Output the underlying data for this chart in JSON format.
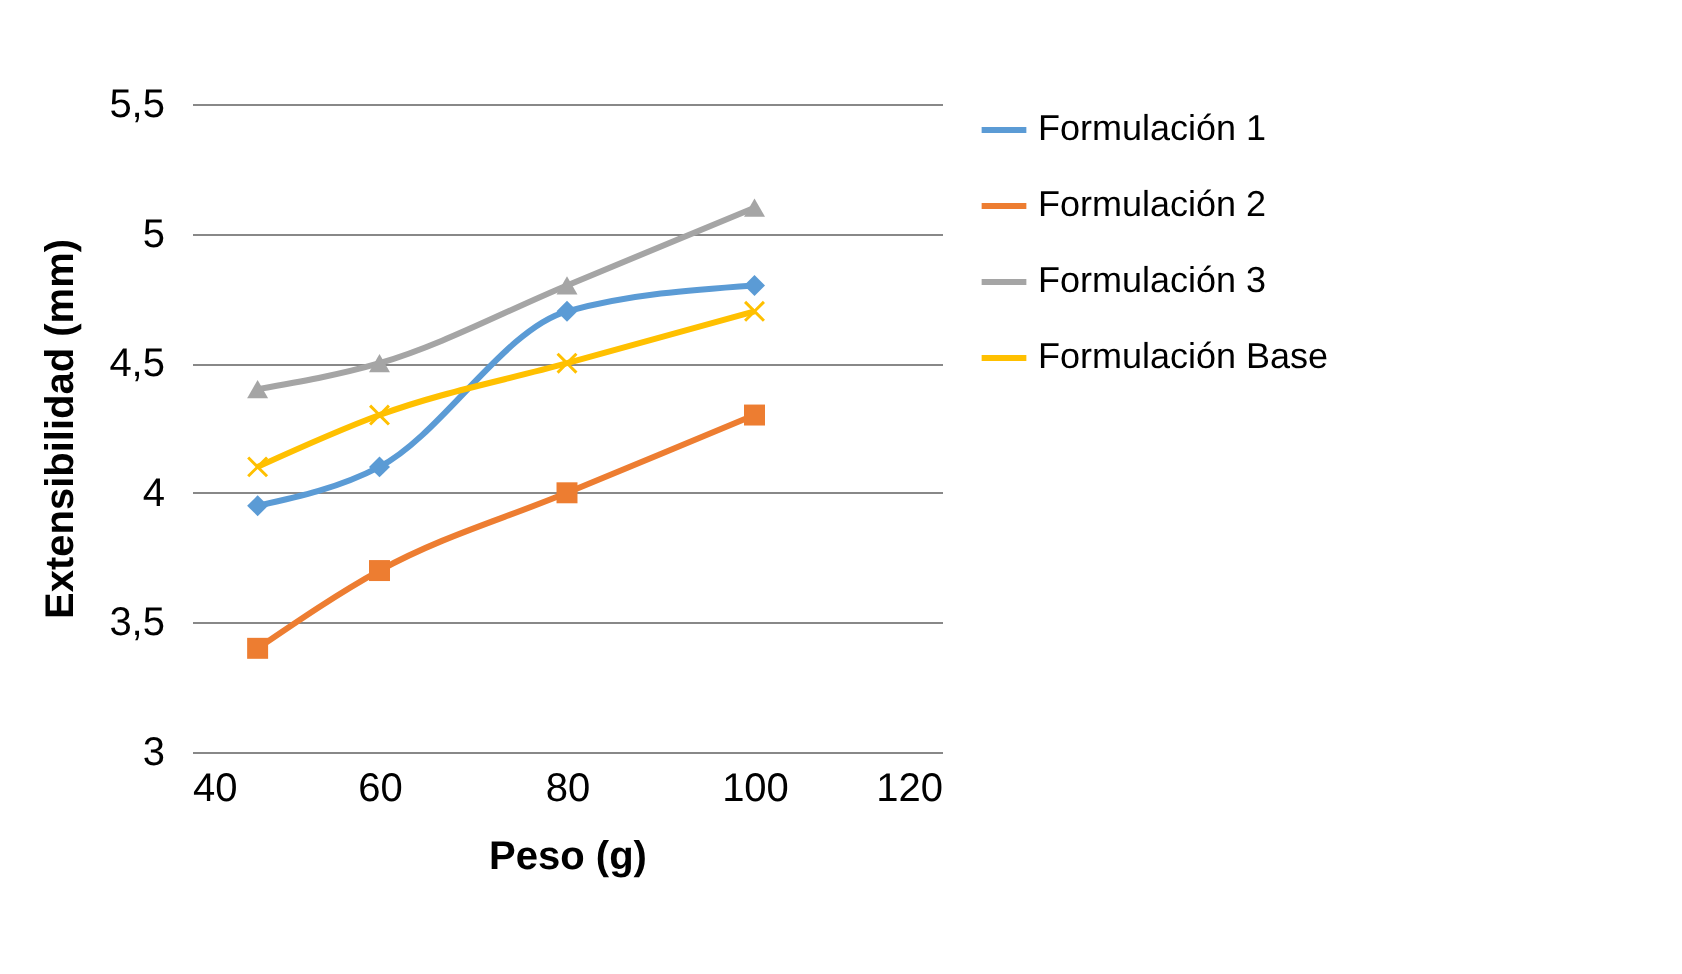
{
  "chart_data": {
    "type": "line",
    "xlabel": "Peso (g)",
    "ylabel": "Extensibilidad  (mm)",
    "x": [
      47,
      60,
      80,
      100
    ],
    "series": [
      {
        "name": "Formulación 1",
        "color": "#5b9bd5",
        "marker": "diamond",
        "values": [
          3.95,
          4.1,
          4.7,
          4.8
        ]
      },
      {
        "name": "Formulación 2",
        "color": "#ed7d31",
        "marker": "square",
        "values": [
          3.4,
          3.7,
          4.0,
          4.3
        ]
      },
      {
        "name": "Formulación 3",
        "color": "#a5a5a5",
        "marker": "triangle",
        "values": [
          4.4,
          4.5,
          4.8,
          5.1
        ]
      },
      {
        "name": "Formulación Base",
        "color": "#ffc000",
        "marker": "cross",
        "values": [
          4.1,
          4.3,
          4.5,
          4.7
        ]
      }
    ],
    "xlim": [
      40,
      120
    ],
    "xticks": [
      40,
      60,
      80,
      100,
      120
    ],
    "ylim": [
      3,
      5.5
    ],
    "yticks": [
      3,
      {
        "value": 3.5,
        "label": "3,5"
      },
      4,
      {
        "value": 4.5,
        "label": "4,5"
      },
      5,
      {
        "value": 5.5,
        "label": "5,5"
      }
    ],
    "grid": "y",
    "legend": "right"
  }
}
